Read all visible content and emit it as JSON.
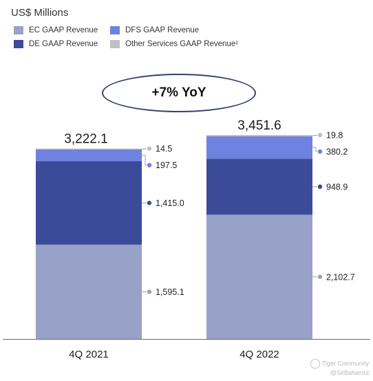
{
  "chart_data": {
    "type": "bar",
    "stacked": true,
    "unit_label": "US$ Millions",
    "categories": [
      "4Q 2021",
      "4Q 2022"
    ],
    "totals": [
      "3,222.1",
      "3,451.6"
    ],
    "series": [
      {
        "name": "EC GAAP Revenue",
        "color": "#98a2c8",
        "values": [
          1595.1,
          2102.7
        ],
        "labels": [
          "1,595.1",
          "2,102.7"
        ]
      },
      {
        "name": "DE GAAP Revenue",
        "color": "#3c4a9a",
        "values": [
          1415.0,
          948.9
        ],
        "labels": [
          "1,415.0",
          "948.9"
        ]
      },
      {
        "name": "DFS GAAP Revenue",
        "color": "#6e82e0",
        "values": [
          197.5,
          380.2
        ],
        "labels": [
          "197.5",
          "380.2"
        ]
      },
      {
        "name": "Other Services GAAP Revenue¹",
        "color": "#c0c0c0",
        "values": [
          14.5,
          19.8
        ],
        "labels": [
          "14.5",
          "19.8"
        ]
      }
    ],
    "annotation": "+7% YoY",
    "legend_position": "top-left"
  },
  "watermark": {
    "line1": "Tiger Community",
    "line2": "@SirBahamut"
  }
}
